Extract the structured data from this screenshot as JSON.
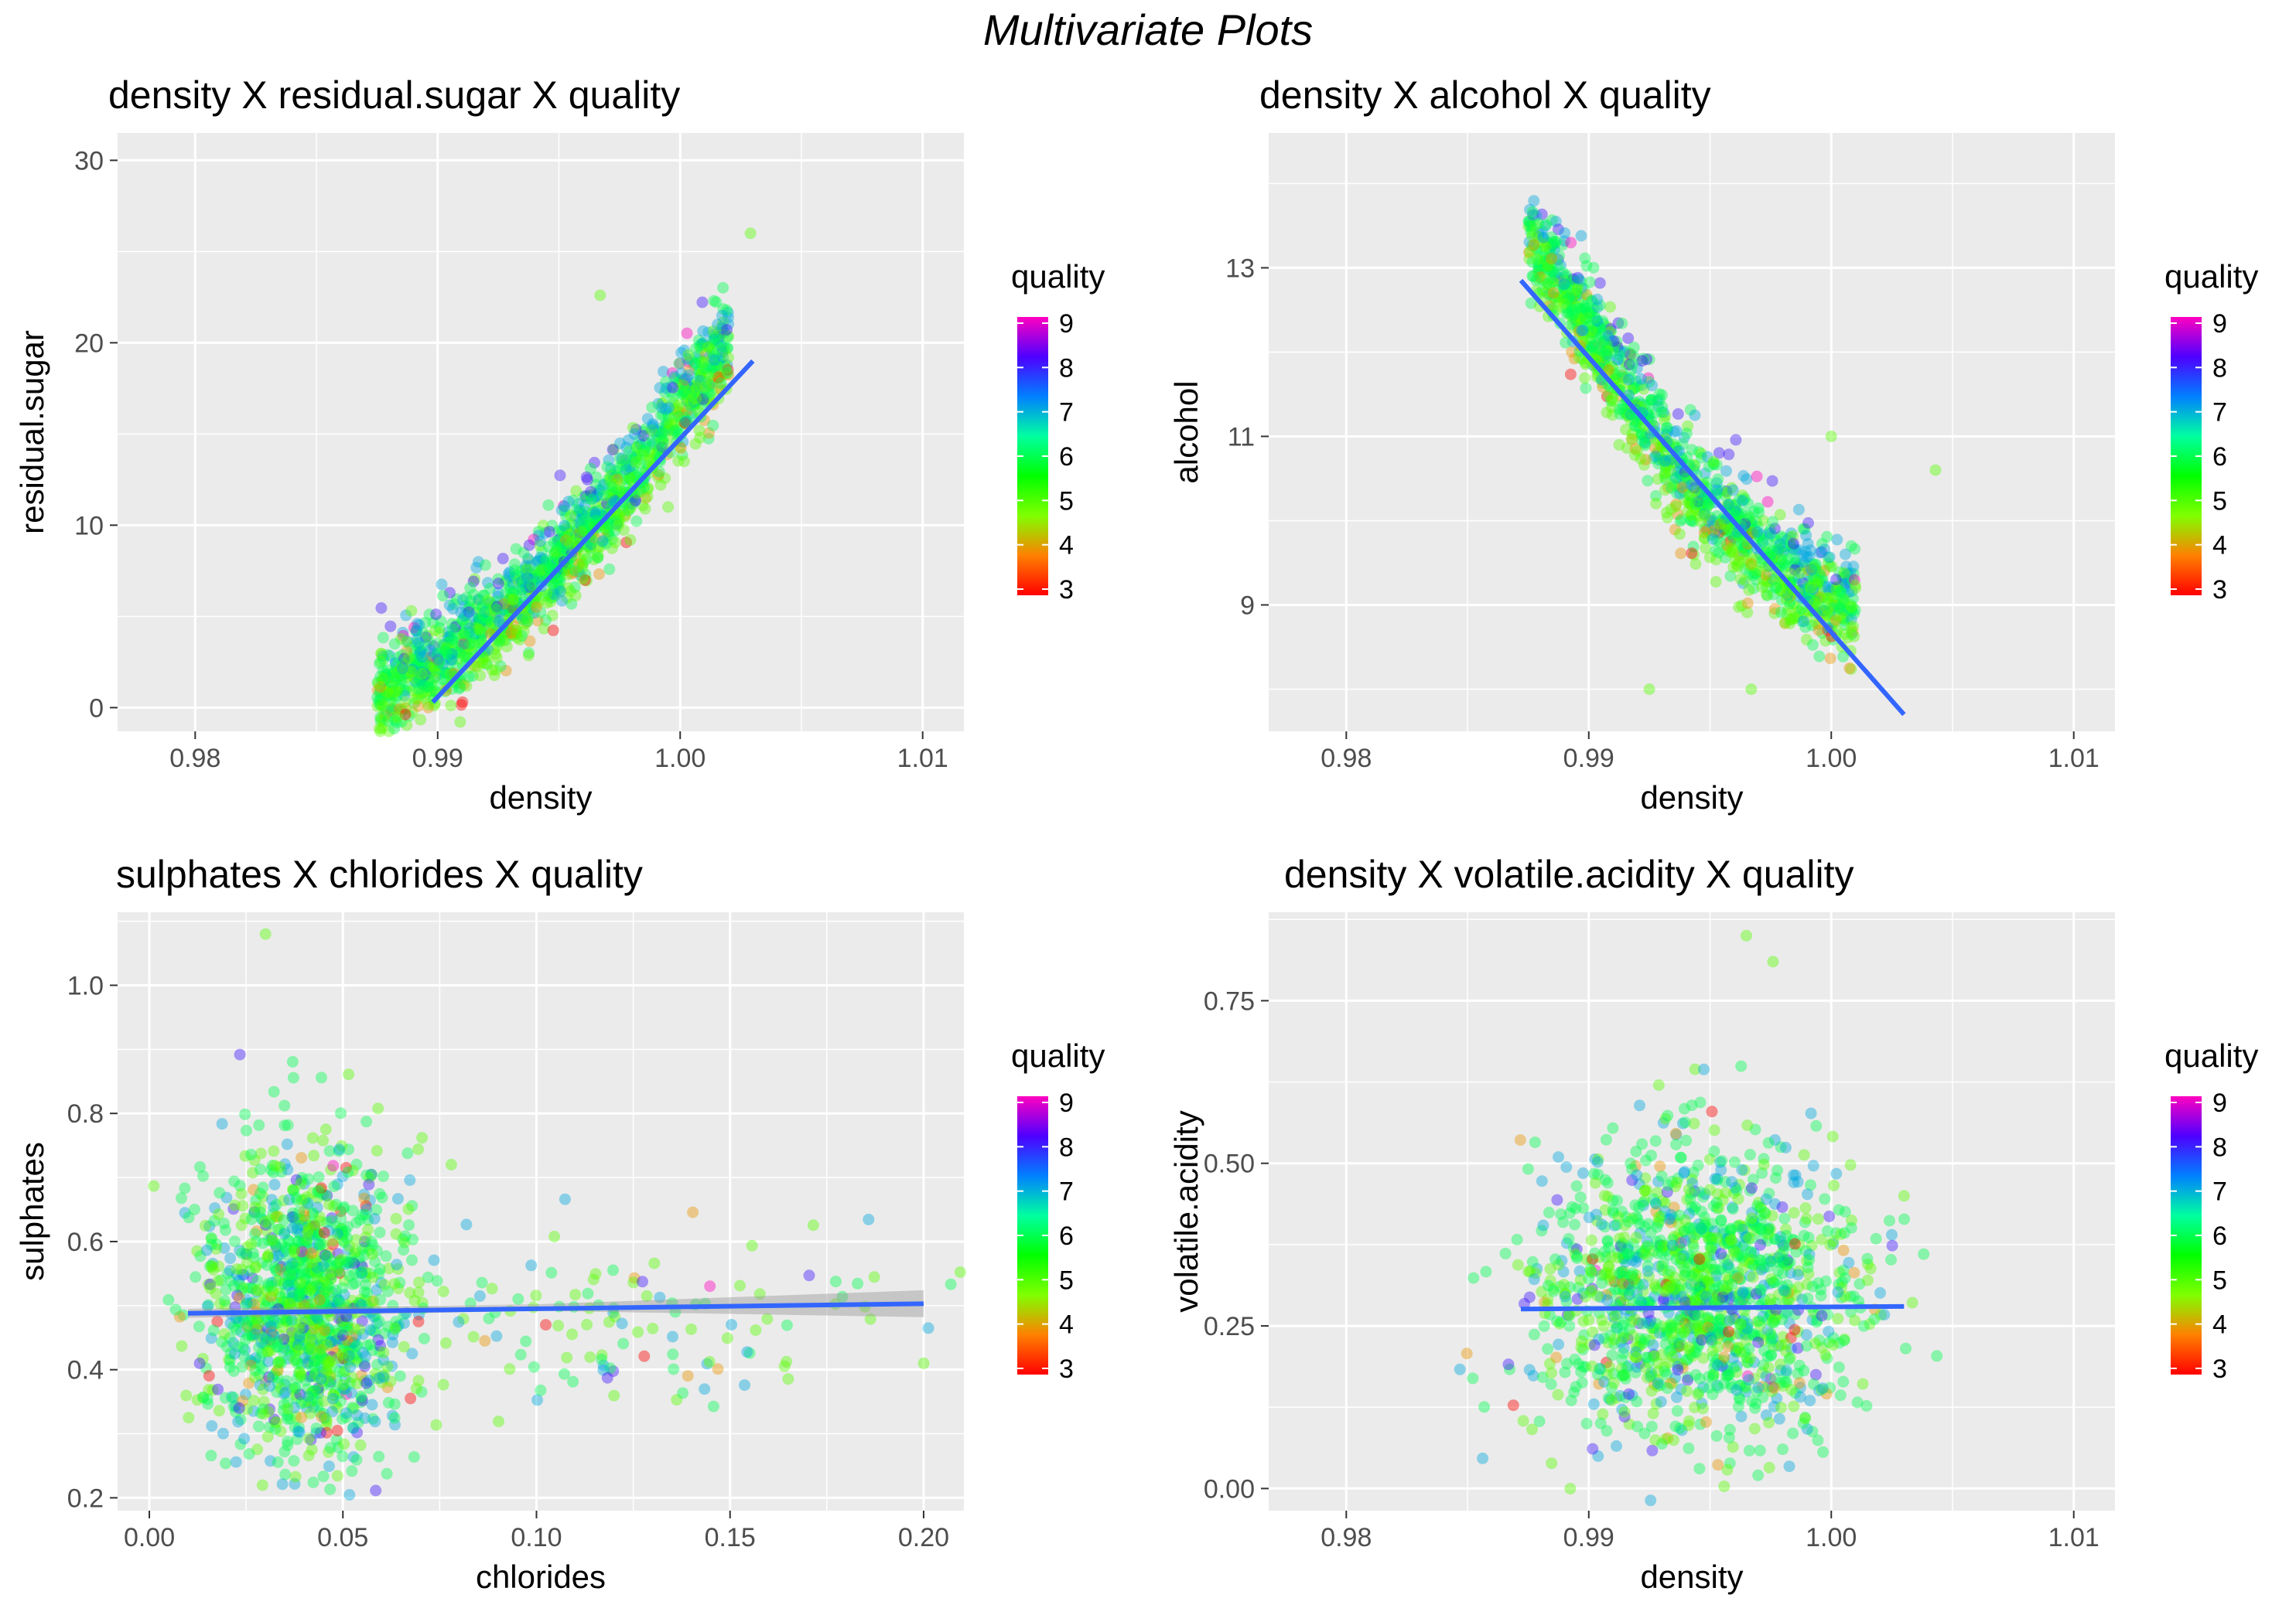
{
  "page_title": "Multivariate Plots",
  "legend": {
    "title": "quality",
    "ticks": [
      "9",
      "8",
      "7",
      "6",
      "5",
      "4",
      "3"
    ],
    "color_stops": [
      "#FF00C0",
      "#4E00FF",
      "#0080FF",
      "#00FFA0",
      "#00FF00",
      "#80FF00",
      "#FF8000",
      "#FF0000"
    ]
  },
  "colors": {
    "panel_background": "#EBEBEB",
    "grid_line": "#FFFFFF",
    "fit_line": "#3366FF",
    "confidence_band": "#999999"
  },
  "chart_data": [
    {
      "type": "scatter",
      "title": "density X residual.sugar X quality",
      "xlabel": "density",
      "ylabel": "residual.sugar",
      "x_ticks": [
        "0.98",
        "0.99",
        "1.00",
        "1.01"
      ],
      "x_tick_values": [
        0.98,
        0.99,
        1.0,
        1.01
      ],
      "y_ticks": [
        "0",
        "10",
        "20",
        "30"
      ],
      "y_tick_values": [
        0,
        10,
        20,
        30
      ],
      "xlim": [
        0.9768,
        1.0117
      ],
      "ylim": [
        -1.3,
        31.5
      ],
      "grid": true,
      "legend_position": "right",
      "fit_line": {
        "x": [
          0.9898,
          1.003
        ],
        "y": [
          0.3,
          19.0
        ]
      },
      "point_cloud": {
        "spine": [
          [
            0.9875,
            1.1
          ],
          [
            0.9895,
            2.2
          ],
          [
            0.992,
            4.5
          ],
          [
            0.9945,
            7.5
          ],
          [
            0.997,
            11.0
          ],
          [
            0.999,
            14.5
          ],
          [
            1.0005,
            17.5
          ],
          [
            1.002,
            20.0
          ]
        ],
        "spread": 2.8,
        "count": 1400
      },
      "outliers": [
        {
          "x": 1.0029,
          "y": 26.0
        },
        {
          "x": 0.9995,
          "y": 11.0
        },
        {
          "x": 0.9967,
          "y": 22.6
        }
      ]
    },
    {
      "type": "scatter",
      "title": "density X alcohol X quality",
      "xlabel": "density",
      "ylabel": "alcohol",
      "x_ticks": [
        "0.98",
        "0.99",
        "1.00",
        "1.01"
      ],
      "x_tick_values": [
        0.98,
        0.99,
        1.0,
        1.01
      ],
      "y_ticks": [
        "9",
        "11",
        "13"
      ],
      "y_tick_values": [
        9,
        11,
        13
      ],
      "xlim": [
        0.9768,
        1.0117
      ],
      "ylim": [
        7.5,
        14.6
      ],
      "grid": true,
      "legend_position": "right",
      "fit_line": {
        "x": [
          0.9872,
          1.003
        ],
        "y": [
          12.85,
          7.7
        ]
      },
      "point_cloud": {
        "spine": [
          [
            0.9875,
            13.4
          ],
          [
            0.989,
            12.8
          ],
          [
            0.9915,
            11.6
          ],
          [
            0.994,
            10.5
          ],
          [
            0.9965,
            9.8
          ],
          [
            0.9985,
            9.3
          ],
          [
            1.001,
            9.0
          ]
        ],
        "spread": 0.65,
        "count": 1200
      },
      "outliers": [
        {
          "x": 1.0043,
          "y": 10.6
        },
        {
          "x": 1.0,
          "y": 11.0
        },
        {
          "x": 0.9925,
          "y": 8.0
        },
        {
          "x": 0.9967,
          "y": 8.0
        }
      ]
    },
    {
      "type": "scatter",
      "title": "sulphates X chlorides X quality",
      "xlabel": "chlorides",
      "ylabel": "sulphates",
      "x_ticks": [
        "0.00",
        "0.05",
        "0.10",
        "0.15",
        "0.20"
      ],
      "x_tick_values": [
        0.0,
        0.05,
        0.1,
        0.15,
        0.2
      ],
      "y_ticks": [
        "0.2",
        "0.4",
        "0.6",
        "0.8",
        "1.0"
      ],
      "y_tick_values": [
        0.2,
        0.4,
        0.6,
        0.8,
        1.0
      ],
      "xlim": [
        -0.0082,
        0.2104
      ],
      "ylim": [
        0.18,
        1.114
      ],
      "grid": true,
      "legend_position": "right",
      "fit_line": {
        "x": [
          0.01,
          0.2
        ],
        "y": [
          0.488,
          0.503
        ]
      },
      "confidence_band": {
        "x": [
          0.01,
          0.1,
          0.2
        ],
        "lower": [
          0.481,
          0.492,
          0.482
        ],
        "upper": [
          0.495,
          0.502,
          0.524
        ]
      },
      "point_cloud": {
        "clusters": [
          {
            "cx": 0.04,
            "sx": 0.013,
            "cy": 0.5,
            "sy": 0.12,
            "count": 1200
          },
          {
            "cx": 0.12,
            "sx": 0.045,
            "cy": 0.47,
            "sy": 0.07,
            "count": 130
          }
        ]
      },
      "outliers": [
        {
          "x": 0.03,
          "y": 1.08
        },
        {
          "x": 0.078,
          "y": 0.72
        },
        {
          "x": 0.2,
          "y": 0.41
        }
      ]
    },
    {
      "type": "scatter",
      "title": "density X volatile.acidity X quality",
      "xlabel": "density",
      "ylabel": "volatile.acidity",
      "x_ticks": [
        "0.98",
        "0.99",
        "1.00",
        "1.01"
      ],
      "x_tick_values": [
        0.98,
        0.99,
        1.0,
        1.01
      ],
      "y_ticks": [
        "0.00",
        "0.25",
        "0.50",
        "0.75"
      ],
      "y_tick_values": [
        0.0,
        0.25,
        0.5,
        0.75
      ],
      "xlim": [
        0.9768,
        1.0117
      ],
      "ylim": [
        -0.034,
        0.886
      ],
      "grid": true,
      "legend_position": "right",
      "fit_line": {
        "x": [
          0.9872,
          1.003
        ],
        "y": [
          0.276,
          0.28
        ]
      },
      "point_cloud": {
        "clusters": [
          {
            "cx": 0.9945,
            "sx": 0.0033,
            "cy": 0.3,
            "sy": 0.11,
            "count": 1400
          }
        ]
      },
      "outliers": [
        {
          "x": 0.9965,
          "y": 0.85
        },
        {
          "x": 0.9976,
          "y": 0.81
        },
        {
          "x": 1.003,
          "y": 0.45
        }
      ]
    }
  ]
}
